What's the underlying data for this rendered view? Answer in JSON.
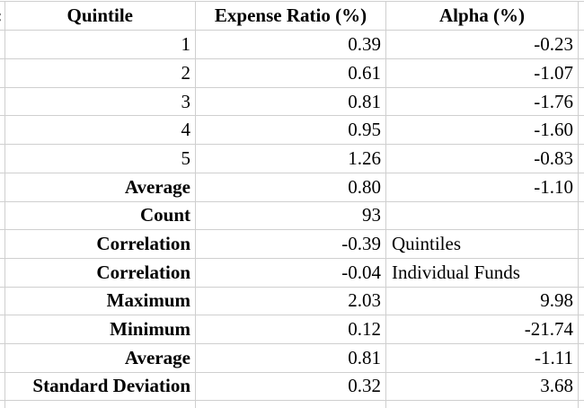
{
  "colors": {
    "gridline": "#cfcfcf",
    "background": "#ffffff",
    "text": "#000000"
  },
  "left_edge": {
    "clipped_fragment": ":"
  },
  "table": {
    "headers": [
      "Quintile",
      "Expense Ratio (%)",
      "Alpha (%)"
    ],
    "rows": [
      {
        "label": "1",
        "bold": false,
        "expense_ratio": "0.39",
        "alpha": "-0.23",
        "alpha_align": "right"
      },
      {
        "label": "2",
        "bold": false,
        "expense_ratio": "0.61",
        "alpha": "-1.07",
        "alpha_align": "right"
      },
      {
        "label": "3",
        "bold": false,
        "expense_ratio": "0.81",
        "alpha": "-1.76",
        "alpha_align": "right"
      },
      {
        "label": "4",
        "bold": false,
        "expense_ratio": "0.95",
        "alpha": "-1.60",
        "alpha_align": "right"
      },
      {
        "label": "5",
        "bold": false,
        "expense_ratio": "1.26",
        "alpha": "-0.83",
        "alpha_align": "right"
      },
      {
        "label": "Average",
        "bold": true,
        "expense_ratio": "0.80",
        "alpha": "-1.10",
        "alpha_align": "right"
      },
      {
        "label": "Count",
        "bold": true,
        "expense_ratio": "93",
        "alpha": "",
        "alpha_align": "right"
      },
      {
        "label": "Correlation",
        "bold": true,
        "expense_ratio": "-0.39",
        "alpha": "Quintiles",
        "alpha_align": "left"
      },
      {
        "label": "Correlation",
        "bold": true,
        "expense_ratio": "-0.04",
        "alpha": "Individual Funds",
        "alpha_align": "left"
      },
      {
        "label": "Maximum",
        "bold": true,
        "expense_ratio": "2.03",
        "alpha": "9.98",
        "alpha_align": "right"
      },
      {
        "label": "Minimum",
        "bold": true,
        "expense_ratio": "0.12",
        "alpha": "-21.74",
        "alpha_align": "right"
      },
      {
        "label": "Average",
        "bold": true,
        "expense_ratio": "0.81",
        "alpha": "-1.11",
        "alpha_align": "right"
      },
      {
        "label": "Standard Deviation",
        "bold": true,
        "expense_ratio": "0.32",
        "alpha": "3.68",
        "alpha_align": "right"
      }
    ]
  }
}
